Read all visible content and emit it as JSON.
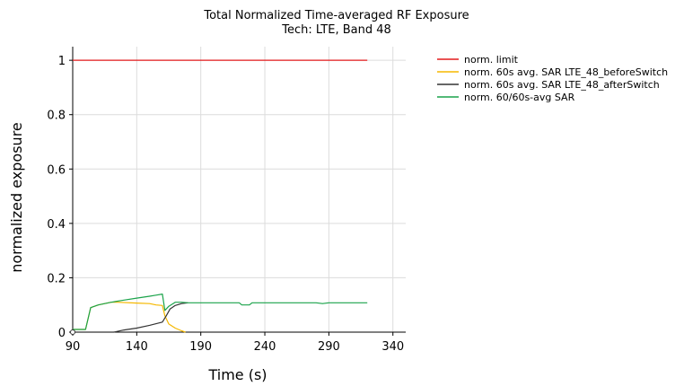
{
  "chart_data": {
    "type": "line",
    "title": "Total Normalized Time-averaged RF Exposure",
    "subtitle": "Tech: LTE, Band 48",
    "xlabel": "Time (s)",
    "ylabel": "normalized exposure",
    "xlim": [
      90,
      350
    ],
    "ylim": [
      0,
      1.05
    ],
    "xticks": [
      90,
      140,
      190,
      240,
      290,
      340
    ],
    "yticks": [
      0,
      0.2,
      0.4,
      0.6,
      0.8,
      1
    ],
    "ytick_labels": [
      "0",
      "0.2",
      "0.4",
      "0.6",
      "0.8",
      "1"
    ],
    "grid": true,
    "legend_position": "top-right outside",
    "series": [
      {
        "name": "norm. limit",
        "color": "#e31a1c",
        "x": [
          90,
          320
        ],
        "y": [
          1,
          1
        ]
      },
      {
        "name": "norm. 60s avg. SAR LTE_48_beforeSwitch",
        "color": "#f5b800",
        "x": [
          90,
          100,
          104,
          110,
          120,
          125,
          140,
          150,
          155,
          160,
          162,
          165,
          170,
          175,
          178
        ],
        "y": [
          0.01,
          0.01,
          0.09,
          0.1,
          0.11,
          0.11,
          0.107,
          0.105,
          0.1,
          0.098,
          0.06,
          0.03,
          0.015,
          0.005,
          0
        ]
      },
      {
        "name": "norm. 60s avg. SAR LTE_48_afterSwitch",
        "color": "#333333",
        "x": [
          122,
          130,
          140,
          150,
          160,
          163,
          166,
          170,
          175,
          180
        ],
        "y": [
          0,
          0.008,
          0.015,
          0.025,
          0.037,
          0.06,
          0.085,
          0.098,
          0.105,
          0.108
        ]
      },
      {
        "name": "norm. 60/60s-avg SAR",
        "color": "#1aa34a",
        "x": [
          90,
          100,
          104,
          110,
          120,
          130,
          140,
          150,
          155,
          160,
          162,
          165,
          170,
          175,
          180,
          190,
          200,
          210,
          220,
          222,
          228,
          230,
          240,
          250,
          260,
          270,
          280,
          285,
          290,
          300,
          310,
          320
        ],
        "y": [
          0.01,
          0.01,
          0.09,
          0.1,
          0.11,
          0.118,
          0.125,
          0.132,
          0.136,
          0.14,
          0.08,
          0.095,
          0.11,
          0.11,
          0.108,
          0.108,
          0.108,
          0.108,
          0.108,
          0.1,
          0.1,
          0.108,
          0.108,
          0.108,
          0.108,
          0.108,
          0.108,
          0.105,
          0.108,
          0.108,
          0.108,
          0.108
        ]
      }
    ]
  }
}
